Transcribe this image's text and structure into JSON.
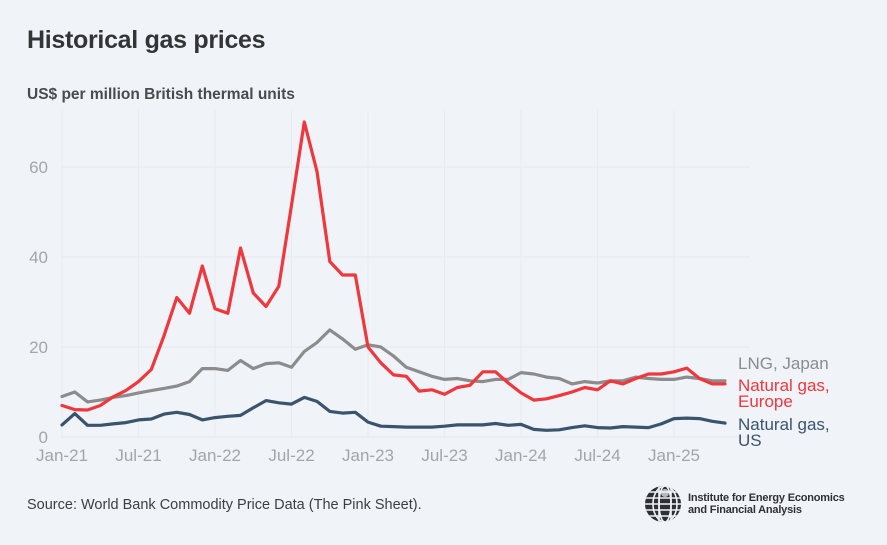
{
  "header": {
    "title": "Historical gas prices",
    "subtitle": "US$ per million British thermal units"
  },
  "footer": {
    "source": "Source: World Bank Commodity Price Data (The Pink Sheet).",
    "logo_line1": "Institute for Energy Economics",
    "logo_line2": "and Financial Analysis",
    "logo_icon": "globe-icon"
  },
  "chart_data": {
    "type": "line",
    "title": "Historical gas prices",
    "ylabel": "US$ per million British thermal units",
    "xlabel": "",
    "ylim": [
      0,
      70
    ],
    "yticks": [
      0,
      20,
      40,
      60
    ],
    "xtick_labels": [
      "Jan-21",
      "Jul-21",
      "Jan-22",
      "Jul-22",
      "Jan-23",
      "Jul-23",
      "Jan-24",
      "Jul-24",
      "Jan-25"
    ],
    "xtick_month_index": [
      0,
      6,
      12,
      18,
      24,
      30,
      36,
      42,
      48
    ],
    "x_start": "Jan-21",
    "x_frequency": "monthly",
    "grid": true,
    "legend": "direct labels at right end of lines",
    "series": [
      {
        "name": "LNG, Japan",
        "label_lines": [
          "LNG, Japan"
        ],
        "color": "#8c8c8c",
        "values": [
          9.0,
          10.0,
          7.8,
          8.2,
          8.8,
          9.2,
          9.8,
          10.3,
          10.8,
          11.3,
          12.3,
          15.2,
          15.2,
          14.8,
          17.0,
          15.2,
          16.3,
          16.5,
          15.5,
          19.0,
          21.0,
          23.8,
          21.8,
          19.5,
          20.5,
          20.0,
          18.0,
          15.5,
          14.5,
          13.5,
          12.8,
          13.0,
          12.5,
          12.3,
          12.8,
          12.8,
          14.3,
          14.0,
          13.3,
          13.0,
          11.8,
          12.3,
          12.0,
          12.5,
          12.5,
          13.3,
          13.0,
          12.8,
          12.8,
          13.3,
          13.0,
          12.5,
          12.5
        ]
      },
      {
        "name": "Natural gas, Europe",
        "label_lines": [
          "Natural gas,",
          "Europe"
        ],
        "color": "#f0373c",
        "values": [
          7.0,
          6.1,
          6.0,
          7.0,
          8.9,
          10.3,
          12.3,
          15.0,
          22.5,
          31.0,
          27.5,
          38.0,
          28.5,
          27.5,
          42.0,
          32.0,
          29.0,
          33.5,
          51.5,
          70.0,
          59.0,
          39.0,
          36.0,
          36.0,
          20.0,
          16.5,
          13.8,
          13.5,
          10.2,
          10.5,
          9.5,
          11.0,
          11.5,
          14.5,
          14.5,
          12.0,
          9.8,
          8.2,
          8.5,
          9.2,
          10.0,
          11.0,
          10.5,
          12.5,
          11.8,
          13.0,
          14.0,
          14.0,
          14.5,
          15.3,
          13.0,
          11.8,
          11.8
        ]
      },
      {
        "name": "Natural gas, US",
        "label_lines": [
          "Natural gas,",
          "US"
        ],
        "color": "#3a546e",
        "values": [
          2.7,
          5.2,
          2.6,
          2.6,
          2.9,
          3.2,
          3.8,
          4.0,
          5.1,
          5.5,
          5.0,
          3.8,
          4.3,
          4.6,
          4.8,
          6.5,
          8.1,
          7.6,
          7.3,
          8.8,
          7.9,
          5.7,
          5.3,
          5.5,
          3.3,
          2.4,
          2.3,
          2.2,
          2.2,
          2.2,
          2.4,
          2.7,
          2.7,
          2.7,
          3.0,
          2.6,
          2.8,
          1.7,
          1.5,
          1.6,
          2.1,
          2.5,
          2.1,
          2.0,
          2.3,
          2.2,
          2.1,
          2.9,
          4.1,
          4.2,
          4.1,
          3.5,
          3.1
        ]
      }
    ]
  }
}
